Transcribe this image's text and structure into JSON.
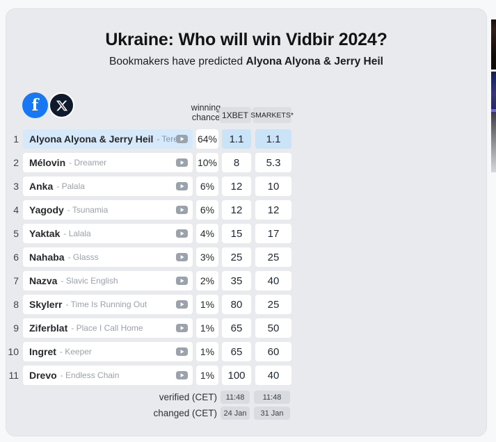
{
  "header": {
    "title": "Ukraine: Who will win Vidbir 2024?",
    "subtitle_prefix": "Bookmakers have predicted",
    "subtitle_bold": "Alyona Alyona & Jerry Heil"
  },
  "social": {
    "facebook_glyph": "f"
  },
  "table": {
    "winning_chance_label": "winning chance",
    "bookmakers": [
      "1XBET",
      "SMARKETS*"
    ],
    "rows": [
      {
        "rank": "1",
        "artist": "Alyona Alyona & Jerry Heil",
        "song": "Teresa & Maria",
        "chance": "64%",
        "odds": [
          "1.1",
          "1.1"
        ],
        "highlight": true
      },
      {
        "rank": "2",
        "artist": "Mélovin",
        "song": "Dreamer",
        "chance": "10%",
        "odds": [
          "8",
          "5.3"
        ],
        "highlight": false
      },
      {
        "rank": "3",
        "artist": "Anka",
        "song": "Palala",
        "chance": "6%",
        "odds": [
          "12",
          "10"
        ],
        "highlight": false
      },
      {
        "rank": "4",
        "artist": "Yagody",
        "song": "Tsunamia",
        "chance": "6%",
        "odds": [
          "12",
          "12"
        ],
        "highlight": false
      },
      {
        "rank": "5",
        "artist": "Yaktak",
        "song": "Lalala",
        "chance": "4%",
        "odds": [
          "15",
          "17"
        ],
        "highlight": false
      },
      {
        "rank": "6",
        "artist": "Nahaba",
        "song": "Glasss",
        "chance": "3%",
        "odds": [
          "25",
          "25"
        ],
        "highlight": false
      },
      {
        "rank": "7",
        "artist": "Nazva",
        "song": "Slavic English",
        "chance": "2%",
        "odds": [
          "35",
          "40"
        ],
        "highlight": false
      },
      {
        "rank": "8",
        "artist": "Skylerr",
        "song": "Time Is Running Out",
        "chance": "1%",
        "odds": [
          "80",
          "25"
        ],
        "highlight": false
      },
      {
        "rank": "9",
        "artist": "Ziferblat",
        "song": "Place I Call Home",
        "chance": "1%",
        "odds": [
          "65",
          "50"
        ],
        "highlight": false
      },
      {
        "rank": "10",
        "artist": "Ingret",
        "song": "Keeper",
        "chance": "1%",
        "odds": [
          "65",
          "60"
        ],
        "highlight": false
      },
      {
        "rank": "11",
        "artist": "Drevo",
        "song": "Endless Chain",
        "chance": "1%",
        "odds": [
          "100",
          "40"
        ],
        "highlight": false
      }
    ]
  },
  "footer": {
    "rows": [
      {
        "label": "verified (CET)",
        "values": [
          "11:48",
          "11:48"
        ]
      },
      {
        "label": "changed (CET)",
        "values": [
          "24 Jan",
          "31 Jan"
        ]
      }
    ]
  },
  "colors": {
    "facebook_blue": "#1877f2",
    "x_black": "#0f1b2d",
    "card_bg": "#e9eaee",
    "highlight_name_bg": "#d6e9fa",
    "highlight_odds_bg": "#cbe3f7",
    "header_badge_bg": "#dcdee2",
    "footer_badge_bg": "#d9dbe0"
  }
}
